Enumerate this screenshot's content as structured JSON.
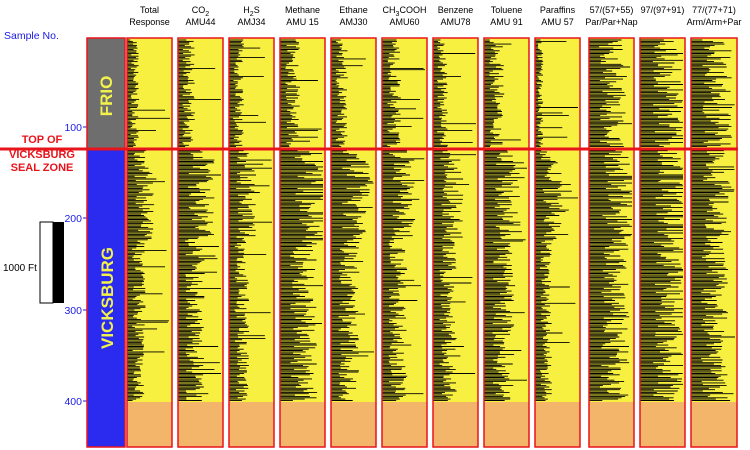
{
  "y_axis": {
    "title": "Sample No.",
    "ticks": [
      100,
      200,
      300,
      400
    ]
  },
  "zones": {
    "upper": "FRIO",
    "lower": "VICKSBURG",
    "boundary_line1": "TOP OF",
    "boundary_line2": "VICKSBURG",
    "boundary_line3": "SEAL ZONE"
  },
  "scale_bar": {
    "label": "1000 Ft"
  },
  "columns": [
    {
      "line1": "Total",
      "line2": "Response",
      "line3": ""
    },
    {
      "line1": "CO",
      "sub1": "2",
      "line2": "AMU44",
      "line3": ""
    },
    {
      "line1": "H",
      "sub1": "2",
      "tail1": "S",
      "line2": "AMJ34",
      "line3": ""
    },
    {
      "line1": "Methane",
      "line2": "AMU 15",
      "line3": ""
    },
    {
      "line1": "Ethane",
      "line2": "AMJ30",
      "line3": ""
    },
    {
      "line1": "CH",
      "sub1": "3",
      "tail1": "COOH",
      "line2": "AMU60",
      "line3": ""
    },
    {
      "line1": "Benzene",
      "line2": "AMU78",
      "line3": ""
    },
    {
      "line1": "Toluene",
      "line2": "AMU 91",
      "line3": ""
    },
    {
      "line1": "Paraffins",
      "line2": "AMU 57",
      "line3": ""
    },
    {
      "line1": "57/(57+55)",
      "line2": "Par/Par+Nap",
      "line3": ""
    },
    {
      "line1": "97/(97+91)",
      "line2": "",
      "line3": ""
    },
    {
      "line1": "77/(77+71)",
      "line2": "Arm/Arm+Par",
      "line3": ""
    }
  ],
  "colors": {
    "panel_fill": "#f7f040",
    "panel_border": "#e8141c",
    "bottom_fill": "#f2b56a",
    "frio_fill": "#6e6e6e",
    "vicksburg_fill": "#2b2bf0",
    "axis_text": "#1a1ae6",
    "seal_line": "#e8141c",
    "bars": "#000000"
  }
}
